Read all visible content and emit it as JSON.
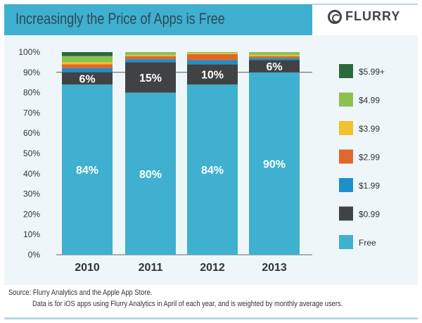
{
  "header": {
    "title": "Increasingly the Price of Apps is Free",
    "logo_text": "FLURRY"
  },
  "chart_data": {
    "type": "bar",
    "stacked": true,
    "title": "Increasingly the Price of Apps is Free",
    "categories": [
      "2010",
      "2011",
      "2012",
      "2013"
    ],
    "ylim": [
      0,
      100
    ],
    "yticks": [
      "0%",
      "10%",
      "20%",
      "30%",
      "40%",
      "50%",
      "60%",
      "70%",
      "80%",
      "90%",
      "100%"
    ],
    "grid": false,
    "legend_position": "right",
    "series": [
      {
        "name": "Free",
        "color": "#3fb0cf",
        "values": [
          84,
          80,
          84,
          90
        ],
        "labels": [
          "84%",
          "80%",
          "84%",
          "90%"
        ]
      },
      {
        "name": "$0.99",
        "color": "#414244",
        "values": [
          6,
          15,
          10,
          6
        ],
        "labels": [
          "6%",
          "15%",
          "10%",
          "6%"
        ]
      },
      {
        "name": "$1.99",
        "color": "#1e8fc9",
        "values": [
          2,
          1.5,
          2,
          1
        ]
      },
      {
        "name": "$2.99",
        "color": "#e0672c",
        "values": [
          2,
          1.5,
          3,
          1
        ]
      },
      {
        "name": "$3.99",
        "color": "#f2c12e",
        "values": [
          1,
          0.5,
          0.5,
          0.5
        ]
      },
      {
        "name": "$4.99",
        "color": "#8cc152",
        "values": [
          3,
          1.5,
          0.5,
          1.5
        ]
      },
      {
        "name": "$5.99+",
        "color": "#2b6a3e",
        "values": [
          2,
          0,
          0,
          0
        ]
      }
    ]
  },
  "footer": {
    "source": "Source: Flurry Analytics and the Apple App Store.",
    "note": "Data is for iOS apps using Flurry Analytics in April of each year, and is weighted by monthly average users."
  }
}
